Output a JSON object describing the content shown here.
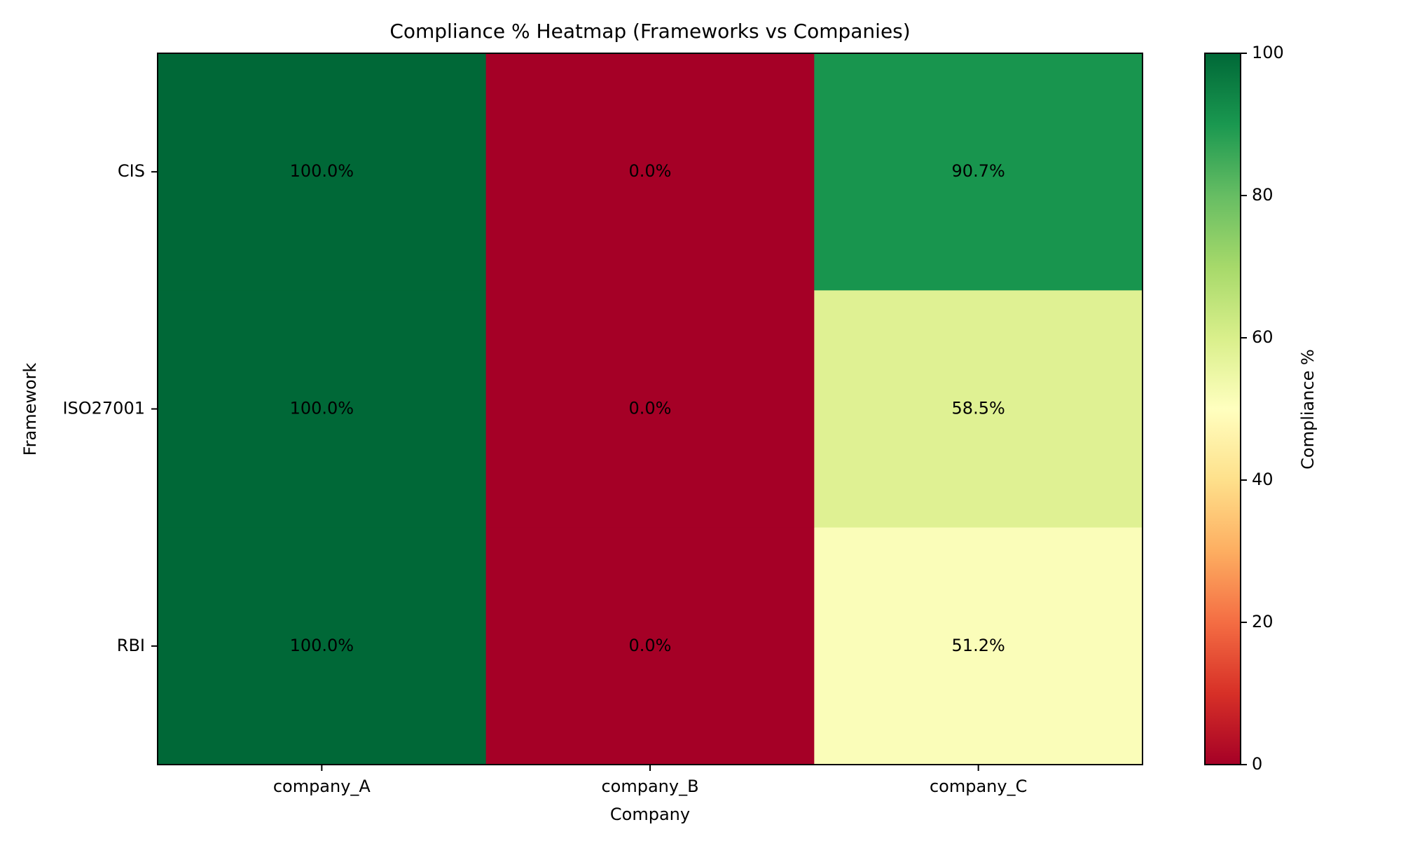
{
  "chart_data": {
    "type": "heatmap",
    "title": "Compliance % Heatmap (Frameworks vs Companies)",
    "xlabel": "Company",
    "ylabel": "Framework",
    "x_categories": [
      "company_A",
      "company_B",
      "company_C"
    ],
    "y_categories": [
      "CIS",
      "ISO27001",
      "RBI"
    ],
    "values": [
      [
        100.0,
        0.0,
        90.7
      ],
      [
        100.0,
        0.0,
        58.5
      ],
      [
        100.0,
        0.0,
        51.2
      ]
    ],
    "cell_labels": [
      [
        "100.0%",
        "0.0%",
        "90.7%"
      ],
      [
        "100.0%",
        "0.0%",
        "58.5%"
      ],
      [
        "100.0%",
        "0.0%",
        "51.2%"
      ]
    ],
    "colormap": "RdYlGn",
    "colorbar": {
      "label": "Compliance %",
      "range": [
        0,
        100
      ],
      "ticks": [
        "0",
        "20",
        "40",
        "60",
        "80",
        "100"
      ]
    }
  }
}
